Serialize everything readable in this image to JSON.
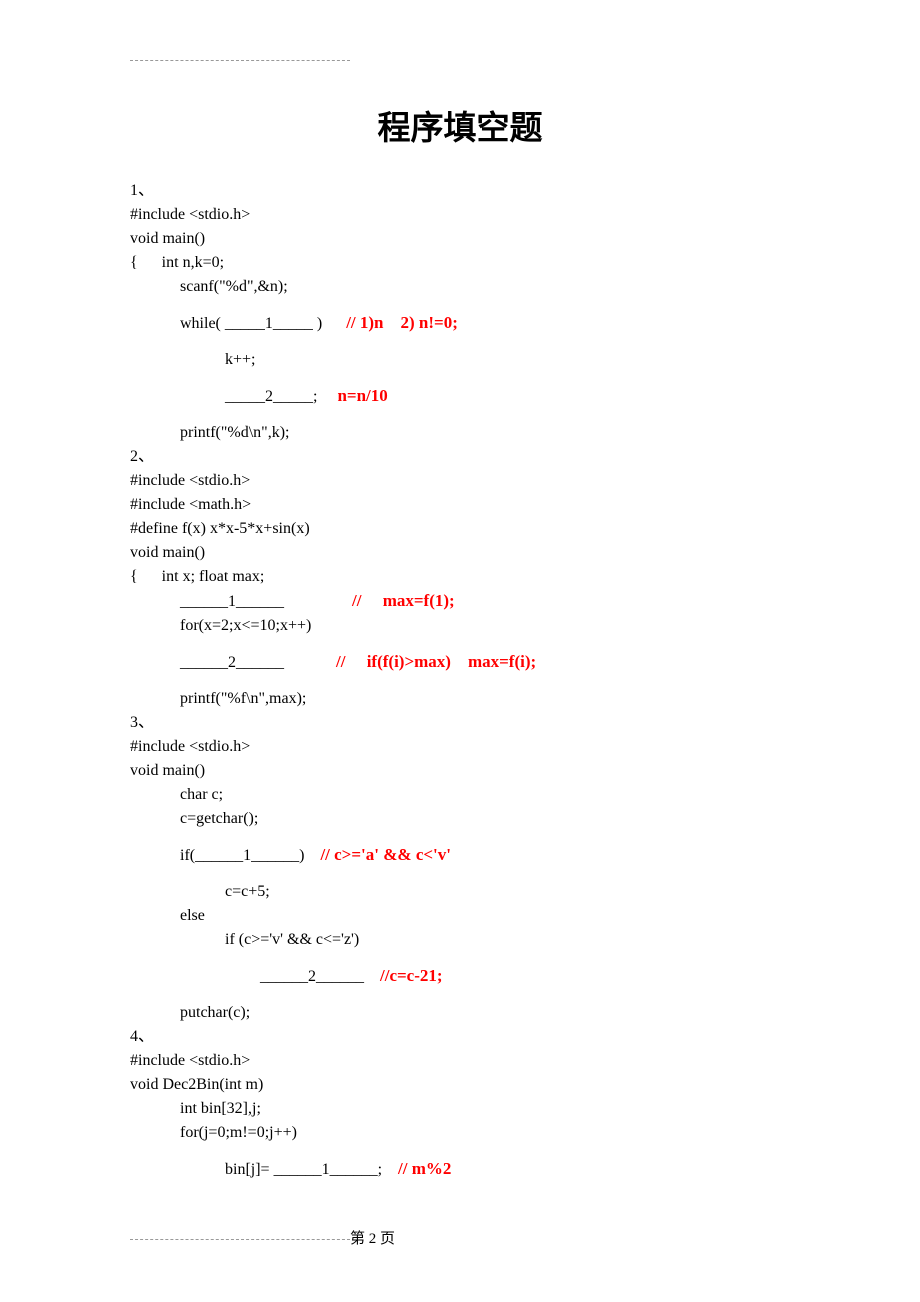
{
  "title": "程序填空题",
  "colors": {
    "answer": "#ff0000",
    "text": "#000000",
    "bg": "#ffffff"
  },
  "font": {
    "body": 16,
    "title": 33,
    "answer": 17
  },
  "q1": {
    "num": "1、",
    "l1": "#include <stdio.h>",
    "l2": "void main()",
    "l3": "{      int n,k=0;",
    "l4": "scanf(\"%d\",&n);",
    "l5": "while( _____1_____ )",
    "a1": "// 1)n    2) n!=0;",
    "l6": "k++;",
    "l7": "_____2_____;",
    "a2": "n=n/10",
    "l8": "printf(\"%d\\n\",k);"
  },
  "q2": {
    "num": "2、",
    "l1": "#include <stdio.h>",
    "l2": "#include <math.h>",
    "l3": "#define f(x) x*x-5*x+sin(x)",
    "l4": "void main()",
    "l5": "{      int x; float max;",
    "l6": "______1______",
    "a1": "//     max=f(1);",
    "l7": "for(x=2;x<=10;x++)",
    "l8": "______2______",
    "a2": "//     if(f(i)>max)    max=f(i);",
    "l9": "printf(\"%f\\n\",max);"
  },
  "q3": {
    "num": "3、",
    "l1": "#include <stdio.h>",
    "l2": "void main()",
    "l3": "char c;",
    "l4": "c=getchar();",
    "l5": "if(______1______)",
    "a1": "// c>='a' && c<'v'",
    "l6": "c=c+5;",
    "l7": "else",
    "l8": "if (c>='v' && c<='z')",
    "l9": "______2______",
    "a2": "//c=c-21;",
    "l10": "putchar(c);"
  },
  "q4": {
    "num": "4、",
    "l1": "#include <stdio.h>",
    "l2": "void Dec2Bin(int m)",
    "l3": "int bin[32],j;",
    "l4": "for(j=0;m!=0;j++)",
    "l5": "bin[j]= ______1______;",
    "a1": "// m%2"
  },
  "footer": "第 2 页"
}
